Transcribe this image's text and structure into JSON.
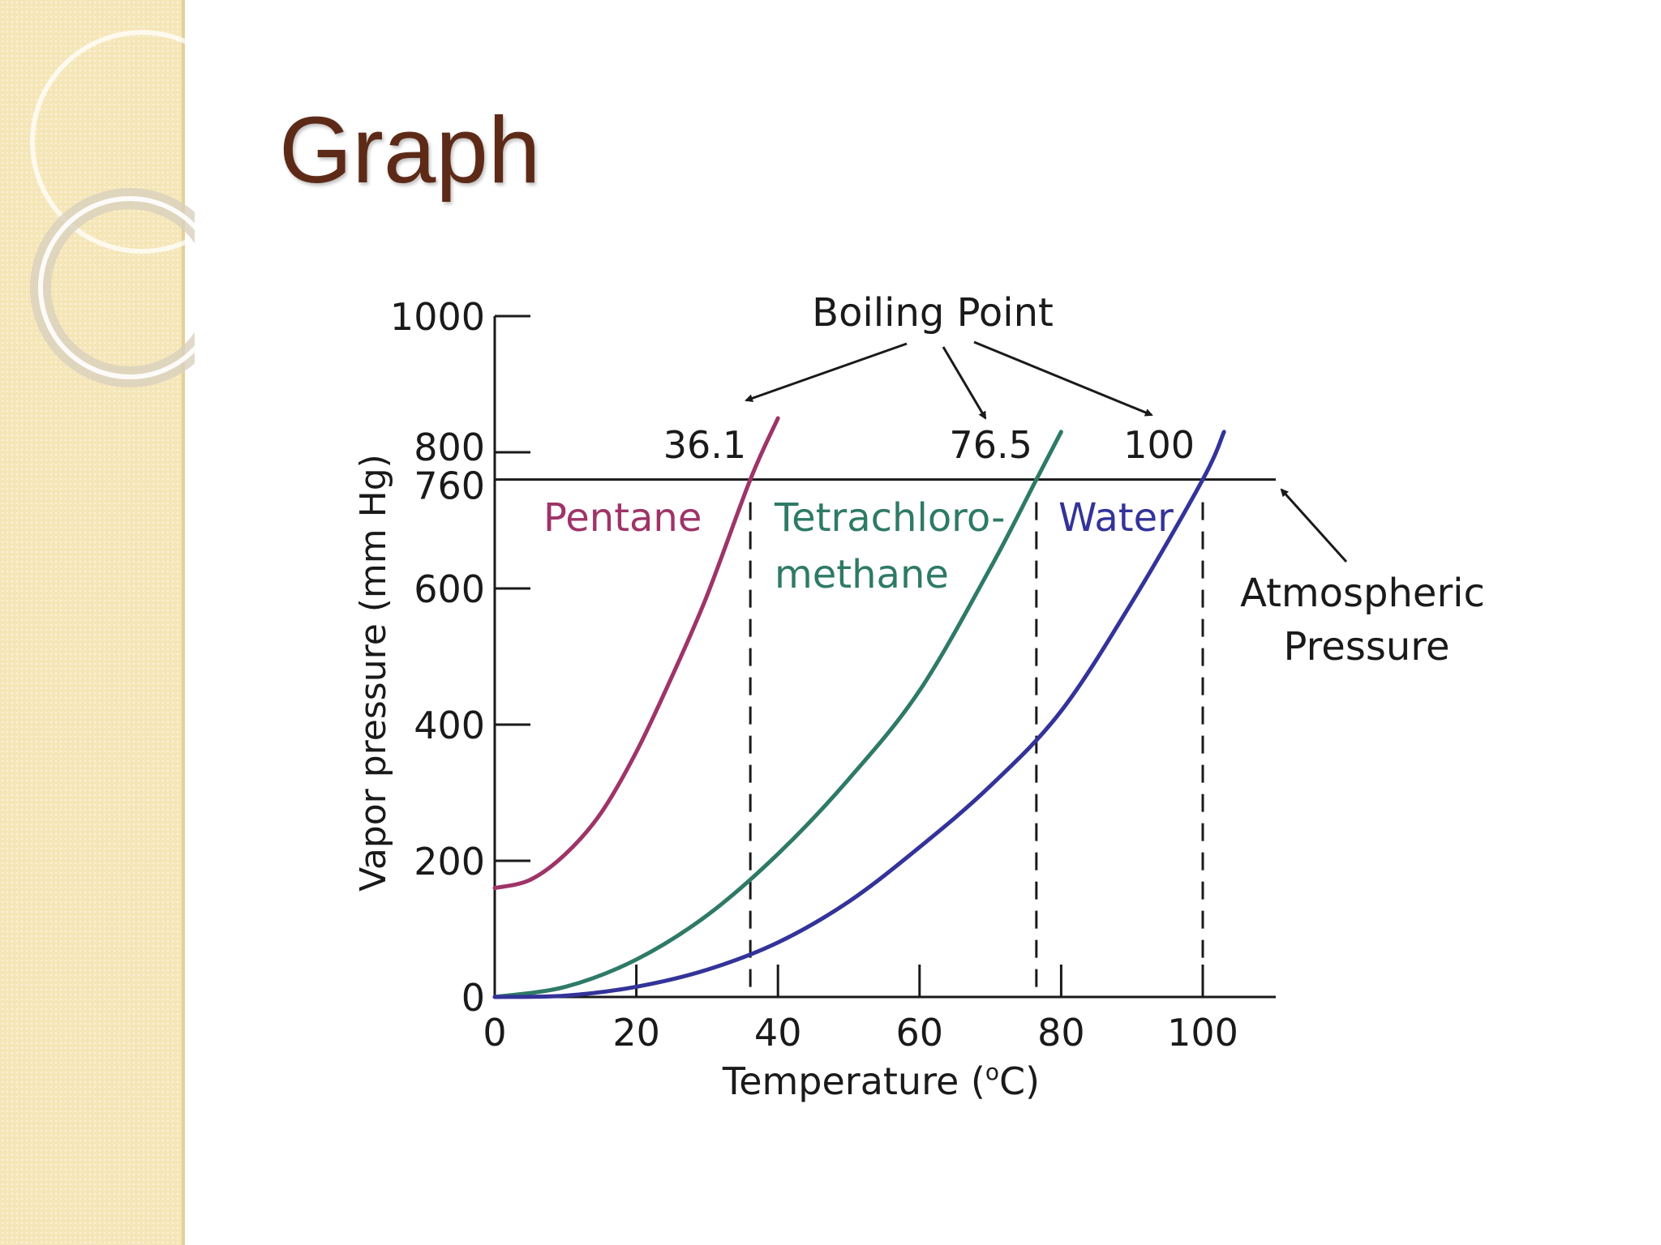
{
  "slide": {
    "title": "Graph",
    "colors": {
      "title": "#5e2a18",
      "side_panel": "#f5e6b8"
    }
  },
  "chart_data": {
    "type": "line",
    "xlabel": "Temperature (°C)",
    "xlabel_parts": {
      "main": "Temperature (",
      "sup": "o",
      "tail": "C)"
    },
    "ylabel": "Vapor pressure (mm Hg)",
    "xlim": [
      0,
      110
    ],
    "ylim": [
      0,
      1000
    ],
    "xticks": [
      0,
      20,
      40,
      60,
      80,
      100
    ],
    "yticks": [
      0,
      200,
      400,
      600,
      760,
      800,
      1000
    ],
    "series": [
      {
        "name": "Pentane",
        "color": "#9e3468",
        "x": [
          0,
          5,
          10,
          15,
          20,
          25,
          30,
          36.1,
          40
        ],
        "y": [
          160,
          172,
          210,
          270,
          360,
          470,
          590,
          760,
          850
        ]
      },
      {
        "name": "Tetrachloro-methane",
        "color": "#2e7a66",
        "x": [
          0,
          10,
          20,
          30,
          40,
          50,
          60,
          70,
          76.5,
          80
        ],
        "y": [
          0,
          15,
          55,
          120,
          210,
          320,
          450,
          630,
          760,
          830
        ]
      },
      {
        "name": "Water",
        "color": "#33339a",
        "x": [
          0,
          10,
          20,
          30,
          40,
          50,
          60,
          70,
          80,
          90,
          100,
          103
        ],
        "y": [
          0,
          2,
          15,
          40,
          80,
          140,
          220,
          310,
          420,
          580,
          760,
          830
        ]
      }
    ],
    "reference_line": {
      "y": 760
    },
    "boiling_points": [
      {
        "x": 36.1,
        "label": "36.1"
      },
      {
        "x": 76.5,
        "label": "76.5"
      },
      {
        "x": 100,
        "label": "100"
      }
    ],
    "annotations": {
      "boiling_point": "Boiling Point",
      "atmospheric_line1": "Atmospheric",
      "atmospheric_line2": "Pressure",
      "series_labels": [
        {
          "lines": [
            "Pentane"
          ],
          "color": "#9e3468"
        },
        {
          "lines": [
            "Tetrachloro-",
            "methane"
          ],
          "color": "#2e7a66"
        },
        {
          "lines": [
            "Water"
          ],
          "color": "#33339a"
        }
      ]
    }
  }
}
